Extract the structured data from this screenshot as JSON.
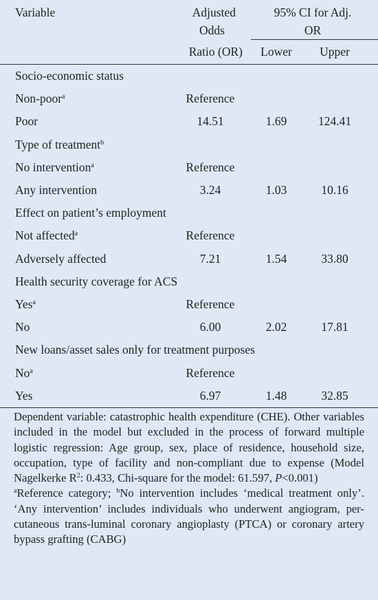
{
  "header": {
    "variable": "Variable",
    "odds_1": "Adjusted",
    "odds_2": "Odds",
    "odds_3": "Ratio (OR)",
    "ci_1": "95% CI for Adj.",
    "ci_2": "OR",
    "lower": "Lower",
    "upper": "Upper"
  },
  "sections": [
    {
      "title": "Socio-economic status",
      "rows": [
        {
          "label": "Non-poor",
          "note": "a",
          "or": "Reference"
        },
        {
          "label": "Poor",
          "or": "14.51",
          "lower": "1.69",
          "upper": "124.41"
        }
      ]
    },
    {
      "title": "Type of treatment",
      "note": "b",
      "rows": [
        {
          "label": "No intervention",
          "note": "a",
          "or": "Reference"
        },
        {
          "label": "Any intervention",
          "or": "3.24",
          "lower": "1.03",
          "upper": "10.16"
        }
      ]
    },
    {
      "title": "Effect on patient’s employment",
      "rows": [
        {
          "label": "Not affected",
          "note": "a",
          "or": "Reference"
        },
        {
          "label": "Adversely affected",
          "or": "7.21",
          "lower": "1.54",
          "upper": "33.80"
        }
      ]
    },
    {
      "title": "Health security coverage for ACS",
      "rows": [
        {
          "label": "Yes",
          "note": "a",
          "or": "Reference"
        },
        {
          "label": "No",
          "or": "6.00",
          "lower": "2.02",
          "upper": "17.81"
        }
      ]
    },
    {
      "title": "New loans/asset sales only for treatment purposes",
      "rows": [
        {
          "label": "No",
          "note": "a",
          "or": "Reference"
        },
        {
          "label": "Yes",
          "or": "6.97",
          "lower": "1.48",
          "upper": "32.85"
        }
      ]
    }
  ],
  "footnotes": {
    "dependent": {
      "text1": "Dependent variable: catastrophic health expenditure (CHE). Other variables included in the model but excluded in the process of forward multiple logistic regression: Age group, sex, place of residence, household size, occupation, type of facility and non-compliant due to expense (Model Nagelkerke R",
      "sup": "2",
      "text2": ": 0.433, Chi-square for the model: 61.597, ",
      "italic": "P",
      "text3": "<0.001)"
    },
    "reference": {
      "sup1": "a",
      "text1": "Reference category; ",
      "sup2": "b",
      "text2": "No intervention includes ‘medical treatment only’. ‘Any intervention’ includes individuals who underwent angiogram, per-cutaneous trans-luminal coronary angioplasty (PTCA) or coronary artery bypass grafting (CABG)"
    }
  }
}
